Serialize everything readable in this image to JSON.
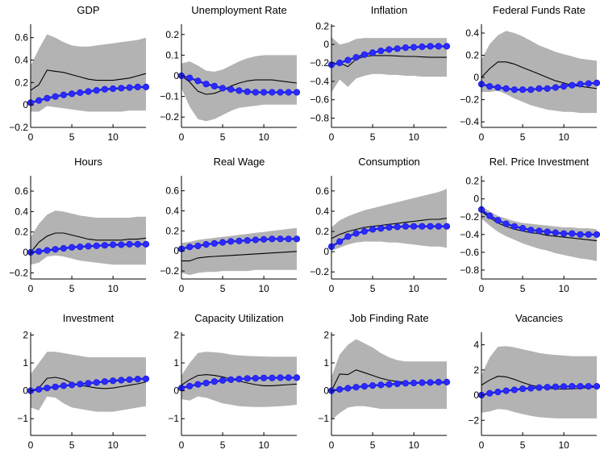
{
  "chart_data": [
    {
      "type": "line",
      "title": "GDP",
      "x": [
        0,
        1,
        2,
        3,
        4,
        5,
        6,
        7,
        8,
        9,
        10,
        11,
        12,
        13,
        14
      ],
      "ylim": [
        -0.2,
        0.72
      ],
      "yticks": [
        -0.2,
        0,
        0.2,
        0.4,
        0.6
      ],
      "ytick_labels": [
        "−0.2",
        "0",
        "0.2",
        "0.4",
        "0.6"
      ],
      "xticks": [
        0,
        5,
        10
      ],
      "xtick_labels": [
        "0",
        "5",
        "10"
      ],
      "band_upper": [
        0.35,
        0.5,
        0.63,
        0.6,
        0.56,
        0.53,
        0.52,
        0.52,
        0.53,
        0.54,
        0.55,
        0.56,
        0.57,
        0.58,
        0.6
      ],
      "band_lower": [
        -0.06,
        -0.06,
        -0.01,
        -0.02,
        -0.03,
        -0.04,
        -0.05,
        -0.06,
        -0.06,
        -0.06,
        -0.06,
        -0.06,
        -0.05,
        -0.05,
        -0.05
      ],
      "median": [
        0.13,
        0.18,
        0.31,
        0.3,
        0.29,
        0.27,
        0.25,
        0.23,
        0.22,
        0.22,
        0.22,
        0.23,
        0.24,
        0.26,
        0.28
      ],
      "model": [
        0.02,
        0.04,
        0.06,
        0.075,
        0.09,
        0.1,
        0.11,
        0.12,
        0.13,
        0.14,
        0.145,
        0.15,
        0.155,
        0.16,
        0.16
      ]
    },
    {
      "type": "line",
      "title": "Unemployment Rate",
      "x": [
        0,
        1,
        2,
        3,
        4,
        5,
        6,
        7,
        8,
        9,
        10,
        11,
        12,
        13,
        14
      ],
      "ylim": [
        -0.25,
        0.25
      ],
      "yticks": [
        -0.2,
        -0.1,
        0,
        0.1,
        0.2
      ],
      "ytick_labels": [
        "−0.2",
        "−0.1",
        "0",
        "0.1",
        "0.2"
      ],
      "xticks": [
        0,
        5,
        10
      ],
      "xtick_labels": [
        "0",
        "5",
        "10"
      ],
      "band_upper": [
        0.06,
        0.07,
        0.05,
        0.025,
        0.02,
        0.03,
        0.05,
        0.07,
        0.085,
        0.095,
        0.1,
        0.1,
        0.1,
        0.1,
        0.1
      ],
      "band_lower": [
        -0.06,
        -0.15,
        -0.21,
        -0.22,
        -0.21,
        -0.19,
        -0.17,
        -0.155,
        -0.15,
        -0.145,
        -0.14,
        -0.14,
        -0.14,
        -0.14,
        -0.14
      ],
      "median": [
        0.0,
        -0.03,
        -0.075,
        -0.09,
        -0.085,
        -0.07,
        -0.05,
        -0.035,
        -0.025,
        -0.02,
        -0.02,
        -0.02,
        -0.025,
        -0.03,
        -0.035
      ],
      "model": [
        0.0,
        -0.01,
        -0.025,
        -0.04,
        -0.05,
        -0.06,
        -0.066,
        -0.072,
        -0.077,
        -0.08,
        -0.08,
        -0.08,
        -0.08,
        -0.08,
        -0.08
      ]
    },
    {
      "type": "line",
      "title": "Inflation",
      "x": [
        0,
        1,
        2,
        3,
        4,
        5,
        6,
        7,
        8,
        9,
        10,
        11,
        12,
        13,
        14
      ],
      "ylim": [
        -0.9,
        0.22
      ],
      "yticks": [
        -0.8,
        -0.6,
        -0.4,
        -0.2,
        0,
        0.2
      ],
      "ytick_labels": [
        "−0.8",
        "−0.6",
        "−0.4",
        "−0.2",
        "0",
        "0.2"
      ],
      "xticks": [
        0,
        5,
        10
      ],
      "xtick_labels": [
        "0",
        "5",
        "10"
      ],
      "band_upper": [
        0.08,
        0.0,
        0.02,
        0.06,
        0.07,
        0.07,
        0.07,
        0.07,
        0.07,
        0.07,
        0.07,
        0.07,
        0.07,
        0.07,
        0.07
      ],
      "band_lower": [
        -0.52,
        -0.38,
        -0.46,
        -0.37,
        -0.34,
        -0.32,
        -0.32,
        -0.33,
        -0.33,
        -0.34,
        -0.34,
        -0.35,
        -0.35,
        -0.35,
        -0.35
      ],
      "median": [
        -0.22,
        -0.2,
        -0.24,
        -0.16,
        -0.13,
        -0.12,
        -0.12,
        -0.12,
        -0.125,
        -0.13,
        -0.13,
        -0.135,
        -0.14,
        -0.14,
        -0.14
      ],
      "model": [
        -0.22,
        -0.2,
        -0.17,
        -0.14,
        -0.11,
        -0.09,
        -0.07,
        -0.055,
        -0.045,
        -0.035,
        -0.03,
        -0.025,
        -0.02,
        -0.02,
        -0.02
      ]
    },
    {
      "type": "line",
      "title": "Federal Funds Rate",
      "x": [
        0,
        1,
        2,
        3,
        4,
        5,
        6,
        7,
        8,
        9,
        10,
        11,
        12,
        13,
        14
      ],
      "ylim": [
        -0.45,
        0.48
      ],
      "yticks": [
        -0.4,
        -0.2,
        0,
        0.2,
        0.4
      ],
      "ytick_labels": [
        "−0.4",
        "−0.2",
        "0",
        "0.2",
        "0.4"
      ],
      "xticks": [
        0,
        5,
        10
      ],
      "xtick_labels": [
        "0",
        "5",
        "10"
      ],
      "band_upper": [
        0.16,
        0.3,
        0.38,
        0.42,
        0.4,
        0.37,
        0.33,
        0.29,
        0.26,
        0.23,
        0.21,
        0.19,
        0.17,
        0.16,
        0.15
      ],
      "band_lower": [
        -0.13,
        -0.13,
        -0.12,
        -0.15,
        -0.19,
        -0.22,
        -0.25,
        -0.27,
        -0.29,
        -0.3,
        -0.31,
        -0.31,
        -0.32,
        -0.32,
        -0.32
      ],
      "median": [
        0.0,
        0.08,
        0.14,
        0.14,
        0.12,
        0.09,
        0.06,
        0.03,
        0.0,
        -0.03,
        -0.05,
        -0.07,
        -0.08,
        -0.09,
        -0.1
      ],
      "model": [
        -0.06,
        -0.08,
        -0.09,
        -0.1,
        -0.11,
        -0.11,
        -0.11,
        -0.1,
        -0.1,
        -0.09,
        -0.08,
        -0.07,
        -0.06,
        -0.055,
        -0.05
      ]
    },
    {
      "type": "line",
      "title": "Hours",
      "x": [
        0,
        1,
        2,
        3,
        4,
        5,
        6,
        7,
        8,
        9,
        10,
        11,
        12,
        13,
        14
      ],
      "ylim": [
        -0.26,
        0.75
      ],
      "yticks": [
        -0.2,
        0,
        0.2,
        0.4,
        0.6
      ],
      "ytick_labels": [
        "−0.2",
        "0",
        "0.2",
        "0.4",
        "0.6"
      ],
      "xticks": [
        0,
        5,
        10
      ],
      "xtick_labels": [
        "0",
        "5",
        "10"
      ],
      "band_upper": [
        0.15,
        0.28,
        0.37,
        0.41,
        0.4,
        0.38,
        0.36,
        0.35,
        0.34,
        0.34,
        0.34,
        0.34,
        0.34,
        0.35,
        0.35
      ],
      "band_lower": [
        -0.12,
        -0.1,
        -0.04,
        -0.03,
        -0.04,
        -0.06,
        -0.08,
        -0.09,
        -0.1,
        -0.11,
        -0.12,
        -0.12,
        -0.12,
        -0.12,
        -0.12
      ],
      "median": [
        0.0,
        0.1,
        0.16,
        0.19,
        0.19,
        0.17,
        0.15,
        0.13,
        0.12,
        0.12,
        0.12,
        0.12,
        0.13,
        0.13,
        0.14
      ],
      "model": [
        0.0,
        0.01,
        0.02,
        0.03,
        0.04,
        0.05,
        0.055,
        0.06,
        0.065,
        0.07,
        0.075,
        0.075,
        0.08,
        0.08,
        0.08
      ]
    },
    {
      "type": "line",
      "title": "Real Wage",
      "x": [
        0,
        1,
        2,
        3,
        4,
        5,
        6,
        7,
        8,
        9,
        10,
        11,
        12,
        13,
        14
      ],
      "ylim": [
        -0.28,
        0.75
      ],
      "yticks": [
        -0.2,
        0,
        0.2,
        0.4,
        0.6
      ],
      "ytick_labels": [
        "−0.2",
        "0",
        "0.2",
        "0.4",
        "0.6"
      ],
      "xticks": [
        0,
        5,
        10
      ],
      "xtick_labels": [
        "0",
        "5",
        "10"
      ],
      "band_upper": [
        0.08,
        0.09,
        0.11,
        0.12,
        0.13,
        0.14,
        0.15,
        0.16,
        0.17,
        0.18,
        0.19,
        0.2,
        0.21,
        0.22,
        0.23
      ],
      "band_lower": [
        -0.22,
        -0.24,
        -0.22,
        -0.21,
        -0.21,
        -0.2,
        -0.2,
        -0.2,
        -0.2,
        -0.19,
        -0.19,
        -0.19,
        -0.19,
        -0.19,
        -0.19
      ],
      "median": [
        -0.1,
        -0.1,
        -0.07,
        -0.06,
        -0.055,
        -0.05,
        -0.045,
        -0.04,
        -0.035,
        -0.03,
        -0.025,
        -0.02,
        -0.015,
        -0.01,
        -0.005
      ],
      "model": [
        0.02,
        0.04,
        0.05,
        0.065,
        0.075,
        0.085,
        0.095,
        0.1,
        0.105,
        0.11,
        0.115,
        0.12,
        0.12,
        0.12,
        0.12
      ]
    },
    {
      "type": "line",
      "title": "Consumption",
      "x": [
        0,
        1,
        2,
        3,
        4,
        5,
        6,
        7,
        8,
        9,
        10,
        11,
        12,
        13,
        14
      ],
      "ylim": [
        -0.27,
        0.75
      ],
      "yticks": [
        -0.2,
        0,
        0.2,
        0.4,
        0.6
      ],
      "ytick_labels": [
        "−0.2",
        "0",
        "0.2",
        "0.4",
        "0.6"
      ],
      "xticks": [
        0,
        5,
        10
      ],
      "xtick_labels": [
        "0",
        "5",
        "10"
      ],
      "band_upper": [
        0.24,
        0.31,
        0.35,
        0.38,
        0.41,
        0.43,
        0.45,
        0.47,
        0.49,
        0.51,
        0.53,
        0.55,
        0.57,
        0.59,
        0.62
      ],
      "band_lower": [
        0.01,
        0.04,
        0.07,
        0.09,
        0.1,
        0.1,
        0.1,
        0.09,
        0.09,
        0.08,
        0.07,
        0.06,
        0.05,
        0.05,
        0.04
      ],
      "median": [
        0.13,
        0.17,
        0.2,
        0.22,
        0.24,
        0.25,
        0.26,
        0.27,
        0.28,
        0.29,
        0.3,
        0.31,
        0.32,
        0.32,
        0.33
      ],
      "model": [
        0.05,
        0.1,
        0.15,
        0.18,
        0.2,
        0.22,
        0.23,
        0.24,
        0.245,
        0.25,
        0.25,
        0.25,
        0.25,
        0.25,
        0.25
      ]
    },
    {
      "type": "line",
      "title": "Rel. Price Investment",
      "x": [
        0,
        1,
        2,
        3,
        4,
        5,
        6,
        7,
        8,
        9,
        10,
        11,
        12,
        13,
        14
      ],
      "ylim": [
        -0.9,
        0.26
      ],
      "yticks": [
        -0.8,
        -0.6,
        -0.4,
        -0.2,
        0,
        0.2
      ],
      "ytick_labels": [
        "−0.8",
        "−0.6",
        "−0.4",
        "−0.2",
        "0",
        "0.2"
      ],
      "xticks": [
        0,
        5,
        10
      ],
      "xtick_labels": [
        "0",
        "5",
        "10"
      ],
      "band_upper": [
        -0.08,
        -0.14,
        -0.19,
        -0.22,
        -0.25,
        -0.27,
        -0.28,
        -0.29,
        -0.3,
        -0.31,
        -0.32,
        -0.32,
        -0.33,
        -0.33,
        -0.34
      ],
      "band_lower": [
        -0.22,
        -0.3,
        -0.37,
        -0.42,
        -0.46,
        -0.5,
        -0.53,
        -0.56,
        -0.58,
        -0.61,
        -0.63,
        -0.65,
        -0.67,
        -0.68,
        -0.7
      ],
      "median": [
        -0.14,
        -0.21,
        -0.27,
        -0.31,
        -0.34,
        -0.36,
        -0.38,
        -0.39,
        -0.41,
        -0.42,
        -0.43,
        -0.44,
        -0.45,
        -0.46,
        -0.47
      ],
      "model": [
        -0.12,
        -0.19,
        -0.24,
        -0.28,
        -0.31,
        -0.33,
        -0.35,
        -0.36,
        -0.37,
        -0.38,
        -0.39,
        -0.39,
        -0.4,
        -0.4,
        -0.4
      ]
    },
    {
      "type": "line",
      "title": "Investment",
      "x": [
        0,
        1,
        2,
        3,
        4,
        5,
        6,
        7,
        8,
        9,
        10,
        11,
        12,
        13,
        14
      ],
      "ylim": [
        -1.6,
        2.1
      ],
      "yticks": [
        -1,
        0,
        1,
        2
      ],
      "ytick_labels": [
        "−1",
        "0",
        "1",
        "2"
      ],
      "xticks": [
        0,
        5,
        10
      ],
      "xtick_labels": [
        "0",
        "5",
        "10"
      ],
      "band_upper": [
        0.6,
        1.0,
        1.4,
        1.4,
        1.35,
        1.3,
        1.25,
        1.2,
        1.2,
        1.2,
        1.2,
        1.2,
        1.2,
        1.2,
        1.2
      ],
      "band_lower": [
        -0.6,
        -0.7,
        -0.2,
        -0.25,
        -0.45,
        -0.6,
        -0.65,
        -0.7,
        -0.75,
        -0.75,
        -0.75,
        -0.7,
        -0.65,
        -0.6,
        -0.55
      ],
      "median": [
        0.0,
        0.1,
        0.45,
        0.48,
        0.42,
        0.28,
        0.2,
        0.15,
        0.1,
        0.08,
        0.1,
        0.15,
        0.2,
        0.25,
        0.32
      ],
      "model": [
        0.0,
        0.05,
        0.1,
        0.14,
        0.18,
        0.21,
        0.24,
        0.27,
        0.3,
        0.33,
        0.36,
        0.38,
        0.4,
        0.42,
        0.43
      ]
    },
    {
      "type": "line",
      "title": "Capacity Utilization",
      "x": [
        0,
        1,
        2,
        3,
        4,
        5,
        6,
        7,
        8,
        9,
        10,
        11,
        12,
        13,
        14
      ],
      "ylim": [
        -1.6,
        2.1
      ],
      "yticks": [
        -1,
        0,
        1,
        2
      ],
      "ytick_labels": [
        "−1",
        "0",
        "1",
        "2"
      ],
      "xticks": [
        0,
        5,
        10
      ],
      "xtick_labels": [
        "0",
        "5",
        "10"
      ],
      "band_upper": [
        0.55,
        1.0,
        1.35,
        1.4,
        1.38,
        1.35,
        1.3,
        1.27,
        1.25,
        1.24,
        1.23,
        1.22,
        1.22,
        1.22,
        1.22
      ],
      "band_lower": [
        -0.3,
        -0.35,
        -0.2,
        -0.25,
        -0.35,
        -0.45,
        -0.5,
        -0.55,
        -0.57,
        -0.58,
        -0.58,
        -0.57,
        -0.55,
        -0.53,
        -0.5
      ],
      "median": [
        0.2,
        0.4,
        0.55,
        0.58,
        0.55,
        0.5,
        0.42,
        0.35,
        0.28,
        0.22,
        0.18,
        0.18,
        0.2,
        0.22,
        0.24
      ],
      "model": [
        0.1,
        0.17,
        0.23,
        0.28,
        0.33,
        0.37,
        0.4,
        0.42,
        0.44,
        0.45,
        0.46,
        0.46,
        0.47,
        0.47,
        0.47
      ]
    },
    {
      "type": "line",
      "title": "Job Finding Rate",
      "x": [
        0,
        1,
        2,
        3,
        4,
        5,
        6,
        7,
        8,
        9,
        10,
        11,
        12,
        13,
        14
      ],
      "ylim": [
        -1.6,
        2.1
      ],
      "yticks": [
        -1,
        0,
        1,
        2
      ],
      "ytick_labels": [
        "−1",
        "0",
        "1",
        "2"
      ],
      "xticks": [
        0,
        5,
        10
      ],
      "xtick_labels": [
        "0",
        "5",
        "10"
      ],
      "band_upper": [
        0.5,
        1.3,
        1.65,
        1.85,
        1.7,
        1.55,
        1.35,
        1.2,
        1.1,
        1.05,
        1.05,
        1.05,
        1.05,
        1.05,
        1.05
      ],
      "band_lower": [
        -1.05,
        -0.8,
        -0.6,
        -0.55,
        -0.55,
        -0.6,
        -0.65,
        -0.65,
        -0.65,
        -0.65,
        -0.65,
        -0.65,
        -0.65,
        -0.65,
        -0.65
      ],
      "median": [
        0.0,
        0.6,
        0.58,
        0.75,
        0.65,
        0.55,
        0.45,
        0.38,
        0.33,
        0.3,
        0.28,
        0.28,
        0.28,
        0.28,
        0.28
      ],
      "model": [
        0.0,
        0.05,
        0.09,
        0.13,
        0.16,
        0.19,
        0.21,
        0.23,
        0.25,
        0.27,
        0.28,
        0.29,
        0.3,
        0.31,
        0.31
      ]
    },
    {
      "type": "line",
      "title": "Vacancies",
      "x": [
        0,
        1,
        2,
        3,
        4,
        5,
        6,
        7,
        8,
        9,
        10,
        11,
        12,
        13,
        14
      ],
      "ylim": [
        -3.2,
        5.0
      ],
      "yticks": [
        -2,
        0,
        2,
        4
      ],
      "ytick_labels": [
        "−2",
        "0",
        "2",
        "4"
      ],
      "xticks": [
        0,
        5,
        10
      ],
      "xtick_labels": [
        "0",
        "5",
        "10"
      ],
      "band_upper": [
        1.6,
        3.0,
        3.85,
        3.9,
        3.8,
        3.65,
        3.5,
        3.35,
        3.25,
        3.2,
        3.15,
        3.1,
        3.1,
        3.1,
        3.1
      ],
      "band_lower": [
        -1.4,
        -1.3,
        -1.1,
        -1.15,
        -1.35,
        -1.5,
        -1.65,
        -1.75,
        -1.8,
        -1.85,
        -1.85,
        -1.85,
        -1.85,
        -1.85,
        -1.85
      ],
      "median": [
        0.8,
        1.2,
        1.5,
        1.45,
        1.25,
        1.0,
        0.8,
        0.65,
        0.55,
        0.5,
        0.48,
        0.5,
        0.55,
        0.6,
        0.65
      ],
      "model": [
        0.0,
        0.15,
        0.25,
        0.35,
        0.42,
        0.5,
        0.55,
        0.6,
        0.63,
        0.66,
        0.68,
        0.7,
        0.7,
        0.7,
        0.7
      ]
    }
  ],
  "colors": {
    "band": "#b3b3b3",
    "median_line": "#000000",
    "model_line": "#1f1fe6",
    "marker_face": "#2b2bff",
    "axes": "#000000"
  }
}
